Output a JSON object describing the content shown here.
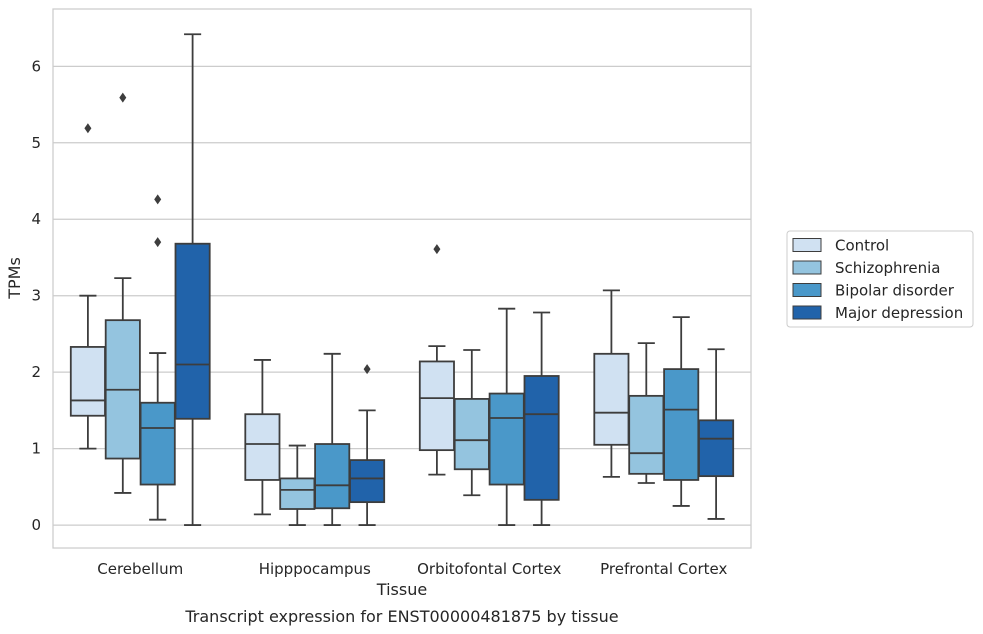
{
  "chart_data": {
    "type": "box",
    "xlabel": "Tissue",
    "ylabel": "TPMs",
    "caption": "Transcript expression for ENST00000481875 by tissue",
    "ylim": [
      -0.3,
      6.75
    ],
    "yticks": [
      0,
      1,
      2,
      3,
      4,
      5,
      6
    ],
    "grid": "horizontal",
    "legend_placement": "right",
    "categories": [
      "Cerebellum",
      "Hipppocampus",
      "Orbitofontal Cortex",
      "Prefrontal Cortex"
    ],
    "series": [
      {
        "name": "Control",
        "color": "#d0e1f2",
        "boxes": [
          {
            "whisker_low": 1.0,
            "q1": 1.43,
            "median": 1.63,
            "q3": 2.33,
            "whisker_high": 3.0,
            "outliers": [
              5.19
            ]
          },
          {
            "whisker_low": 0.14,
            "q1": 0.59,
            "median": 1.06,
            "q3": 1.45,
            "whisker_high": 2.16,
            "outliers": []
          },
          {
            "whisker_low": 0.66,
            "q1": 0.98,
            "median": 1.66,
            "q3": 2.14,
            "whisker_high": 2.34,
            "outliers": [
              3.61
            ]
          },
          {
            "whisker_low": 0.63,
            "q1": 1.05,
            "median": 1.47,
            "q3": 2.24,
            "whisker_high": 3.07,
            "outliers": []
          }
        ]
      },
      {
        "name": "Schizophrenia",
        "color": "#94c4df",
        "boxes": [
          {
            "whisker_low": 0.42,
            "q1": 0.87,
            "median": 1.77,
            "q3": 2.68,
            "whisker_high": 3.23,
            "outliers": [
              5.59
            ]
          },
          {
            "whisker_low": 0.0,
            "q1": 0.21,
            "median": 0.46,
            "q3": 0.61,
            "whisker_high": 1.04,
            "outliers": []
          },
          {
            "whisker_low": 0.39,
            "q1": 0.73,
            "median": 1.11,
            "q3": 1.65,
            "whisker_high": 2.29,
            "outliers": []
          },
          {
            "whisker_low": 0.55,
            "q1": 0.67,
            "median": 0.94,
            "q3": 1.69,
            "whisker_high": 2.38,
            "outliers": []
          }
        ]
      },
      {
        "name": "Bipolar disorder",
        "color": "#4a98c9",
        "boxes": [
          {
            "whisker_low": 0.07,
            "q1": 0.53,
            "median": 1.27,
            "q3": 1.6,
            "whisker_high": 2.25,
            "outliers": [
              4.26,
              3.7
            ]
          },
          {
            "whisker_low": 0.0,
            "q1": 0.22,
            "median": 0.52,
            "q3": 1.06,
            "whisker_high": 2.24,
            "outliers": []
          },
          {
            "whisker_low": 0.0,
            "q1": 0.53,
            "median": 1.4,
            "q3": 1.72,
            "whisker_high": 2.83,
            "outliers": []
          },
          {
            "whisker_low": 0.25,
            "q1": 0.59,
            "median": 1.51,
            "q3": 2.04,
            "whisker_high": 2.72,
            "outliers": []
          }
        ]
      },
      {
        "name": "Major depression",
        "color": "#2163aa",
        "boxes": [
          {
            "whisker_low": 0.0,
            "q1": 1.39,
            "median": 2.1,
            "q3": 3.68,
            "whisker_high": 6.42,
            "outliers": []
          },
          {
            "whisker_low": 0.0,
            "q1": 0.3,
            "median": 0.61,
            "q3": 0.85,
            "whisker_high": 1.5,
            "outliers": [
              2.04
            ]
          },
          {
            "whisker_low": 0.0,
            "q1": 0.33,
            "median": 1.45,
            "q3": 1.95,
            "whisker_high": 2.78,
            "outliers": []
          },
          {
            "whisker_low": 0.08,
            "q1": 0.64,
            "median": 1.13,
            "q3": 1.37,
            "whisker_high": 2.3,
            "outliers": []
          }
        ]
      }
    ]
  }
}
